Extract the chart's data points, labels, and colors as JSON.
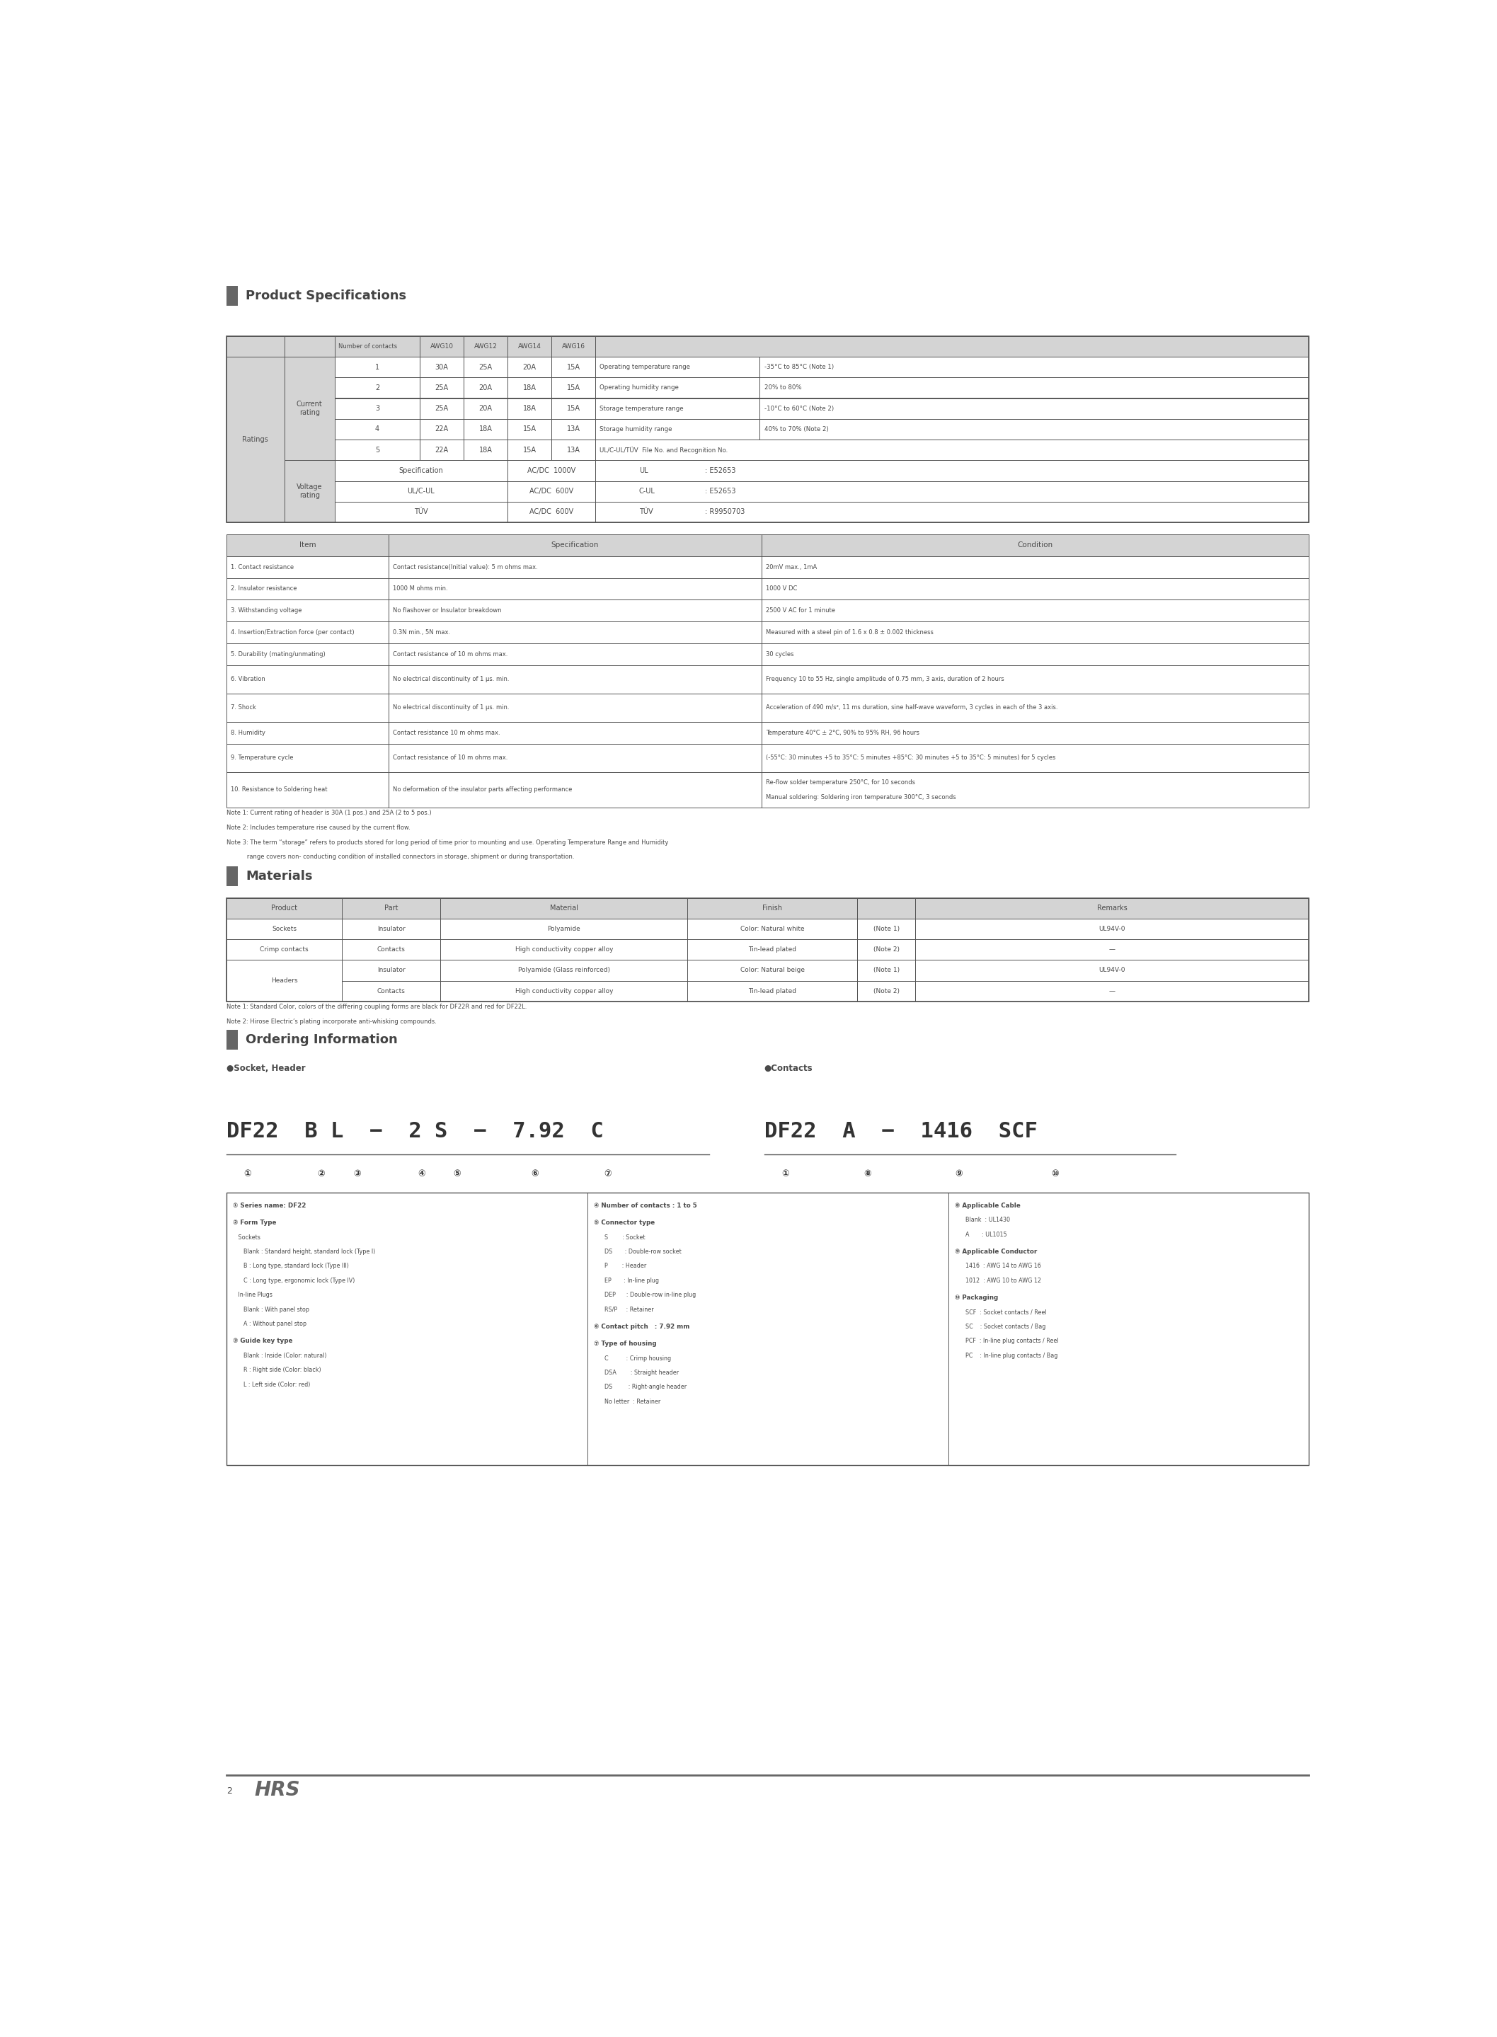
{
  "page_width": 21.15,
  "page_height": 28.78,
  "bg_color": "#ffffff",
  "text_color": "#4a4a4a",
  "header_bg": "#d4d4d4",
  "line_color": "#555555",
  "section1_title": "Product Specifications",
  "section2_title": "Materials",
  "section3_title": "Ordering Information",
  "ratings_rows": [
    [
      "1",
      "30A",
      "25A",
      "20A",
      "15A"
    ],
    [
      "2",
      "25A",
      "20A",
      "18A",
      "15A"
    ],
    [
      "3",
      "25A",
      "20A",
      "18A",
      "15A"
    ],
    [
      "4",
      "22A",
      "18A",
      "15A",
      "13A"
    ],
    [
      "5",
      "22A",
      "18A",
      "15A",
      "13A"
    ]
  ],
  "voltage_rows": [
    [
      "Specification",
      "AC/DC  1000V"
    ],
    [
      "UL/C-UL",
      "AC/DC  600V"
    ],
    [
      "TÜV",
      "AC/DC  600V"
    ]
  ],
  "right_info": [
    [
      "Operating temperature range",
      "-35°C to 85°C (Note 1)"
    ],
    [
      "Operating humidity range",
      "20% to 80%"
    ],
    [
      "Storage temperature range",
      "-10°C to 60°C (Note 2)"
    ],
    [
      "Storage humidity range",
      "40% to 70% (Note 2)"
    ],
    [
      "UL/C-UL/TÜV  File No. and Recognition No.",
      ""
    ],
    [
      "UL",
      ": E52653"
    ],
    [
      "C-UL",
      ": E52653"
    ],
    [
      "TÜV",
      ": R9950703"
    ]
  ],
  "spec_rows": [
    [
      "1. Contact resistance",
      "Contact resistance(Initial value): 5 m ohms max.",
      "20mV max., 1mA"
    ],
    [
      "2. Insulator resistance",
      "1000 M ohms min.",
      "1000 V DC"
    ],
    [
      "3. Withstanding voltage",
      "No flashover or Insulator breakdown",
      "2500 V AC for 1 minute"
    ],
    [
      "4. Insertion/Extraction force (per contact)",
      "0.3N min., 5N max.",
      "Measured with a steel pin of 1.6 x 0.8 ± 0.002 thickness"
    ],
    [
      "5. Durability (mating/unmating)",
      "Contact resistance of 10 m ohms max.",
      "30 cycles"
    ],
    [
      "6. Vibration",
      "No electrical discontinuity of 1 μs. min.",
      "Frequency 10 to 55 Hz, single amplitude of 0.75 mm, 3 axis, duration of 2 hours"
    ],
    [
      "7. Shock",
      "No electrical discontinuity of 1 μs. min.",
      "Acceleration of 490 m/s², 11 ms duration, sine half-wave waveform, 3 cycles in each of the 3 axis."
    ],
    [
      "8. Humidity",
      "Contact resistance 10 m ohms max.",
      "Temperature 40°C ± 2°C, 90% to 95% RH, 96 hours"
    ],
    [
      "9. Temperature cycle",
      "Contact resistance of 10 m ohms max.",
      "(-55°C: 30 minutes +5 to 35°C: 5 minutes +85°C: 30 minutes +5 to 35°C: 5 minutes) for 5 cycles"
    ],
    [
      "10. Resistance to Soldering heat",
      "No deformation of the insulator parts affecting performance",
      "Re-flow solder temperature 250°C, for 10 seconds\nManual soldering: Soldering iron temperature 300°C, 3 seconds"
    ]
  ],
  "notes_spec": [
    "Note 1: Current rating of header is 30A (1 pos.) and 25A (2 to 5 pos.)",
    "Note 2: Includes temperature rise caused by the current flow.",
    "Note 3: The term “storage” refers to products stored for long period of time prior to mounting and use. Operating Temperature Range and Humidity",
    "           range covers non- conducting condition of installed connectors in storage, shipment or during transportation."
  ],
  "mat_rows": [
    [
      "Sockets",
      "Insulator",
      "Polyamide",
      "Color: Natural white",
      "(Note 1)",
      "UL94V-0"
    ],
    [
      "Crimp contacts",
      "Contacts",
      "High conductivity copper alloy",
      "Tin-lead plated",
      "(Note 2)",
      "—"
    ],
    [
      "Headers",
      "Insulator",
      "Polyamide (Glass reinforced)",
      "Color: Natural beige",
      "(Note 1)",
      "UL94V-0"
    ],
    [
      "",
      "Contacts",
      "High conductivity copper alloy",
      "Tin-lead plated",
      "(Note 2)",
      "—"
    ]
  ],
  "notes_mat": [
    "Note 1: Standard Color, colors of the differing coupling forms are black for DF22R and red for DF22L.",
    "Note 2: Hirose Electric’s plating incorporate anti-whisking compounds."
  ],
  "ord_left_col": [
    [
      "① Series name: DF22",
      true,
      []
    ],
    [
      "② Form Type",
      true,
      [
        "   Sockets",
        "      Blank : Standard height, standard lock (Type I)",
        "      B : Long type, standard lock (Type III)",
        "      C : Long type, ergonomic lock (Type IV)",
        "   In-line Plugs",
        "      Blank : With panel stop",
        "      A : Without panel stop"
      ]
    ],
    [
      "③ Guide key type",
      true,
      [
        "      Blank : Inside (Color: natural)",
        "      R : Right side (Color: black)",
        "      L : Left side (Color: red)"
      ]
    ]
  ],
  "ord_mid_col": [
    [
      "④ Number of contacts : 1 to 5",
      true,
      []
    ],
    [
      "⑤ Connector type",
      true,
      [
        "      S        : Socket",
        "      DS       : Double-row socket",
        "      P        : Header",
        "      EP       : In-line plug",
        "      DEP      : Double-row in-line plug",
        "      RS/P     : Retainer"
      ]
    ],
    [
      "⑥ Contact pitch   : 7.92 mm",
      true,
      []
    ],
    [
      "⑦ Type of housing",
      true,
      [
        "      C          : Crimp housing",
        "      DSA        : Straight header",
        "      DS         : Right-angle header",
        "      No letter  : Retainer"
      ]
    ]
  ],
  "ord_right_col": [
    [
      "⑧ Applicable Cable",
      true,
      [
        "      Blank  : UL1430",
        "      A       : UL1015"
      ]
    ],
    [
      "⑨ Applicable Conductor",
      true,
      [
        "      1416  : AWG 14 to AWG 16",
        "      1012  : AWG 10 to AWG 12"
      ]
    ],
    [
      "⑩ Packaging",
      true,
      [
        "      SCF  : Socket contacts / Reel",
        "      SC    : Socket contacts / Bag",
        "      PCF  : In-line plug contacts / Reel",
        "      PC    : In-line plug contacts / Bag"
      ]
    ]
  ]
}
